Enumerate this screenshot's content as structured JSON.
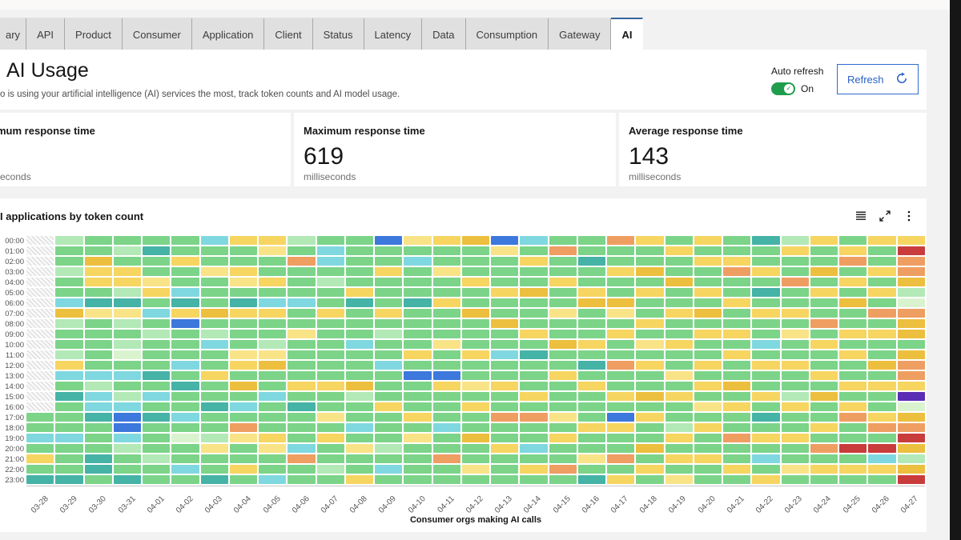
{
  "tabs": {
    "items": [
      {
        "label": "ary",
        "selected": false
      },
      {
        "label": "API",
        "selected": false
      },
      {
        "label": "Product",
        "selected": false
      },
      {
        "label": "Consumer",
        "selected": false
      },
      {
        "label": "Application",
        "selected": false
      },
      {
        "label": "Client",
        "selected": false
      },
      {
        "label": "Status",
        "selected": false
      },
      {
        "label": "Latency",
        "selected": false
      },
      {
        "label": "Data",
        "selected": false
      },
      {
        "label": "Consumption",
        "selected": false
      },
      {
        "label": "Gateway",
        "selected": false
      },
      {
        "label": "AI",
        "selected": true
      }
    ]
  },
  "header": {
    "title": "AI Usage",
    "subtitle": "o is using your artificial intelligence (AI) services the most, track token counts and AI model usage.",
    "auto_refresh_label": "Auto refresh",
    "auto_refresh_state": "On",
    "refresh_button": "Refresh"
  },
  "metrics": {
    "cards": [
      {
        "title": "mum response time",
        "value": "",
        "unit": "econds"
      },
      {
        "title": "Maximum response time",
        "value": "619",
        "unit": "milliseconds"
      },
      {
        "title": "Average response time",
        "value": "143",
        "unit": "milliseconds"
      }
    ]
  },
  "chart": {
    "title": "I applications by token count",
    "xlabel": "Consumer orgs making AI calls",
    "toolbar_icons": [
      "data-table-icon",
      "maximize-icon",
      "overflow-menu-icon"
    ]
  },
  "chart_data": {
    "type": "heatmap",
    "x_categories": [
      "03-28",
      "03-29",
      "03-30",
      "03-31",
      "04-01",
      "04-02",
      "04-03",
      "04-04",
      "04-05",
      "04-06",
      "04-07",
      "04-08",
      "04-09",
      "04-10",
      "04-11",
      "04-12",
      "04-13",
      "04-14",
      "04-15",
      "04-16",
      "04-17",
      "04-18",
      "04-19",
      "04-20",
      "04-21",
      "04-22",
      "04-23",
      "04-24",
      "04-25",
      "04-26",
      "04-27"
    ],
    "y_categories": [
      "00:00",
      "01:00",
      "02:00",
      "03:00",
      "04:00",
      "05:00",
      "06:00",
      "07:00",
      "08:00",
      "09:00",
      "10:00",
      "11:00",
      "12:00",
      "13:00",
      "14:00",
      "15:00",
      "16:00",
      "17:00",
      "18:00",
      "19:00",
      "20:00",
      "21:00",
      "22:00",
      "23:00"
    ],
    "palette": {
      "0": "#d9f3cf",
      "1": "#b2e9b6",
      "2": "#7cd489",
      "3": "#45b3a6",
      "4": "#7fd8df",
      "5": "#f9e387",
      "6": "#f6d561",
      "7": "#ecbf3e",
      "8": "#ef9e62",
      "9": "#c93c3c",
      "a": "#3d78dc",
      "b": "#5a2eb4",
      "x": "hatch-no-data"
    },
    "cells_note": "31 column strings (one per date), 24 chars each (hours 00-23), chars index palette; x = no data",
    "cells": [
      "xxxxxxxxxxxxxxxxx2242623",
      "122122471221642322242223",
      "227662352222241443222332",
      "21266135121024214aa41223",
      "232256242122232423222122",
      "22622436a222423224202242",
      "422522272142262232215223",
      "622652362225627242852262",
      "652262462215722422265224",
      "128222422522226232224822",
      "244212262222226225262212",
      "222226322242227122425226",
      "a22622262122422262221242",
      "5242223222262a2226252222",
      "6225226222522a6222422822",
      "722262272226225262272252",
      "a52226227224226228226222",
      "426227222623222628224262",
      "282262252272262225262282",
      "223226722262326222622523",
      "82262275262282262a622826",
      "622726226252622726227262",
      "262272262262252622162625",
      "626226272622626252622622",
      "226822622626227262282262",
      "322623262242622623262426",
      "162282262522622162262252",
      "622726228262262722628262",
      "268262722626226268229262",
      "622626282622726226829462",
      "698871087727886b07897179"
    ]
  },
  "colors": {
    "accent_tab_blue": "#35659c",
    "button_blue": "#2f6bd0",
    "toggle_green": "#1f9d4d",
    "page_bg": "#f2f2f2",
    "tab_bg": "#e0e0e0",
    "tile_bg": "#ffffff"
  }
}
